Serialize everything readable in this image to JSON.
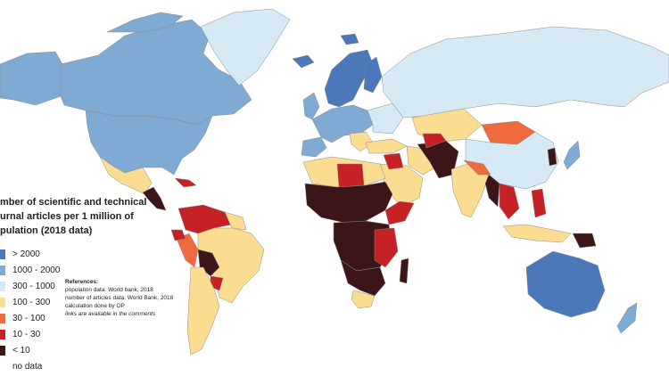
{
  "title_lines": [
    "mber of scientific and technical",
    "urnal articles per 1 million of",
    "pulation (2018 data)"
  ],
  "legend": [
    {
      "label": "> 2000",
      "color": "#4a78b9"
    },
    {
      "label": "1000 - 2000",
      "color": "#7eaad3"
    },
    {
      "label": "300 - 1000",
      "color": "#d6eaf6"
    },
    {
      "label": "100 - 300",
      "color": "#fbdc91"
    },
    {
      "label": "30 - 100",
      "color": "#ef6a3c"
    },
    {
      "label": "10 - 30",
      "color": "#c62125"
    },
    {
      "label": "< 10",
      "color": "#3b1518"
    },
    {
      "label": "no data",
      "color": "#ffffff"
    }
  ],
  "references": {
    "heading": "References:",
    "line1": "population data: World bank, 2018",
    "line2": "number of articles data: World Bank, 2018",
    "line3": "calculation done by OP",
    "note": "links are available in the comments"
  }
}
